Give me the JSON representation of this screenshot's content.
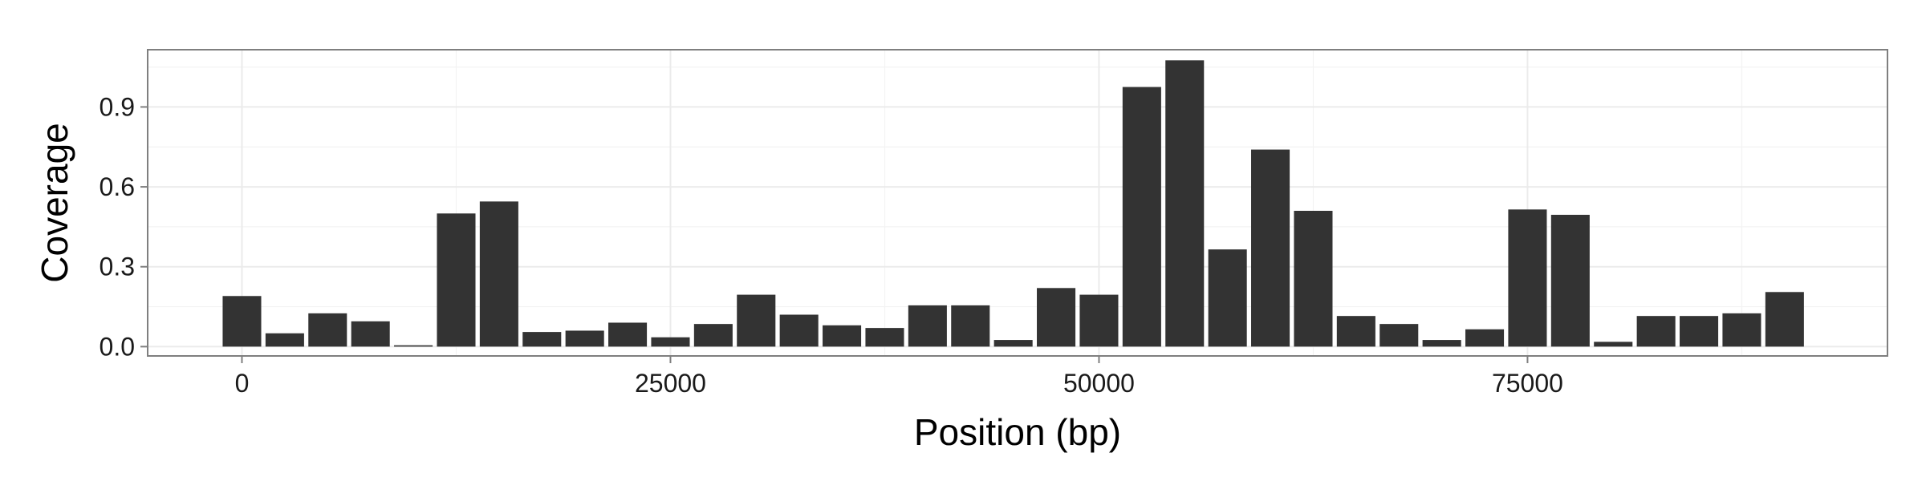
{
  "chart_data": {
    "type": "bar",
    "xlabel": "Position (bp)",
    "ylabel": "Coverage",
    "xlim": [
      -5500,
      96000
    ],
    "ylim": [
      -0.035,
      1.115
    ],
    "x_ticks": [
      0,
      25000,
      50000,
      75000
    ],
    "x_tick_labels": [
      "0",
      "25000",
      "50000",
      "75000"
    ],
    "y_ticks": [
      0.0,
      0.3,
      0.6,
      0.9
    ],
    "y_tick_labels": [
      "0.0",
      "0.3",
      "0.6",
      "0.9"
    ],
    "x_minor_ticks": [
      12500,
      37500,
      62500,
      87500
    ],
    "y_minor_ticks": [
      0.15,
      0.45,
      0.75,
      1.05
    ],
    "bin_width": 2500,
    "grid": true,
    "bar_color": "#333333",
    "panel_border_color": "#7f7f7f",
    "grid_color": "#ebebeb",
    "x": [
      0,
      2500,
      5000,
      7500,
      10000,
      12500,
      15000,
      17500,
      20000,
      22500,
      25000,
      27500,
      30000,
      32500,
      35000,
      37500,
      40000,
      42500,
      45000,
      47500,
      50000,
      52500,
      55000,
      57500,
      60000,
      62500,
      65000,
      67500,
      70000,
      72500,
      75000,
      77500,
      80000,
      82500,
      85000,
      87500,
      90000
    ],
    "values": [
      0.19,
      0.05,
      0.125,
      0.095,
      0.005,
      0.5,
      0.545,
      0.055,
      0.06,
      0.09,
      0.035,
      0.085,
      0.195,
      0.12,
      0.08,
      0.07,
      0.155,
      0.155,
      0.025,
      0.22,
      0.195,
      0.975,
      1.075,
      0.365,
      0.74,
      0.51,
      0.115,
      0.085,
      0.025,
      0.065,
      0.515,
      0.495,
      0.018,
      0.115,
      0.115,
      0.125,
      0.205
    ]
  }
}
